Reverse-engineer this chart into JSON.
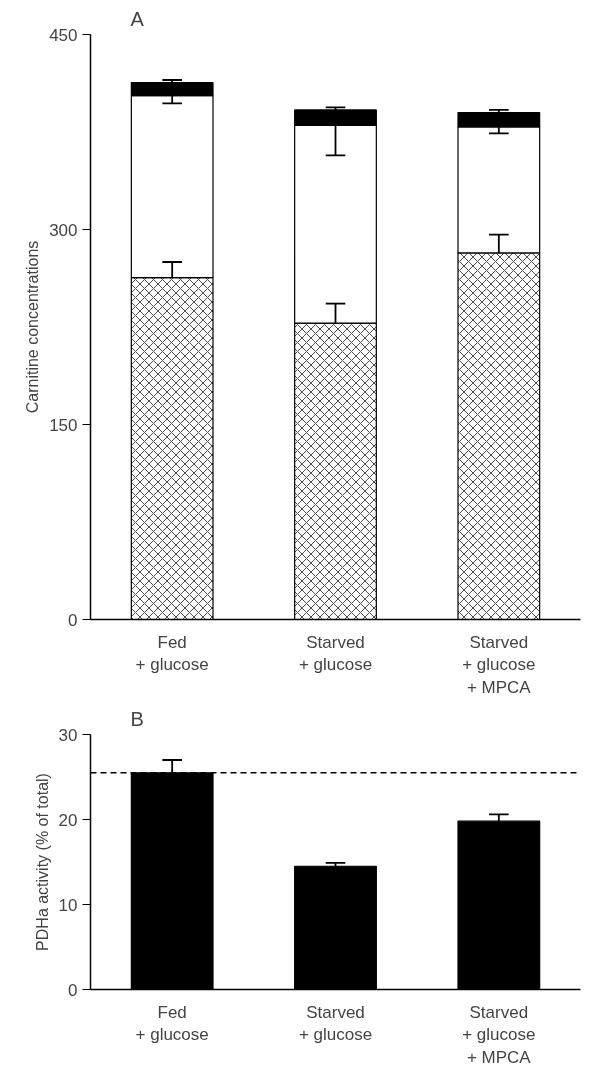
{
  "chart_data": [
    {
      "type": "bar",
      "title": "A",
      "ylabel": "Carnitine concentrations",
      "categories": [
        "Fed\n+ glucose",
        "Starved\n+ glucose",
        "Starved\n+ glucose\n+ MPCA"
      ],
      "stacked": true,
      "series": [
        {
          "color": "#ffffff",
          "values": [
            263,
            228,
            282
          ],
          "errors": [
            [
              263,
              275
            ],
            [
              228,
              243
            ],
            [
              282,
              296
            ]
          ]
        },
        {
          "color": "#ffffff",
          "values": [
            140,
            152,
            97
          ],
          "errors": [
            [
              397,
              403
            ],
            [
              357,
              380
            ],
            [
              374,
              379
            ]
          ]
        },
        {
          "color": "#000000",
          "values": [
            10,
            12,
            11
          ],
          "errors": [
            [
              413,
              415
            ],
            [
              392,
              394
            ],
            [
              390,
              392
            ]
          ]
        }
      ],
      "ylim": [
        0,
        450
      ],
      "yticks": [
        0,
        150,
        300,
        450
      ]
    },
    {
      "type": "bar",
      "title": "B",
      "ylabel": "PDHa activity (% of total)",
      "categories": [
        "Fed\n+ glucose",
        "Starved\n+ glucose",
        "Starved\n+ glucose\n+ MPCA"
      ],
      "series": [
        {
          "color": "#000000",
          "values": [
            25.5,
            14.5,
            19.8
          ],
          "errors": [
            [
              25.5,
              27
            ],
            [
              14.5,
              14.9
            ],
            [
              19.8,
              20.6
            ]
          ]
        }
      ],
      "ylim": [
        0,
        30
      ],
      "yticks": [
        0,
        10,
        20,
        30
      ],
      "ref_lines": [
        {
          "axis": "y",
          "value": 25.5,
          "line_style": "dashed"
        }
      ]
    }
  ]
}
